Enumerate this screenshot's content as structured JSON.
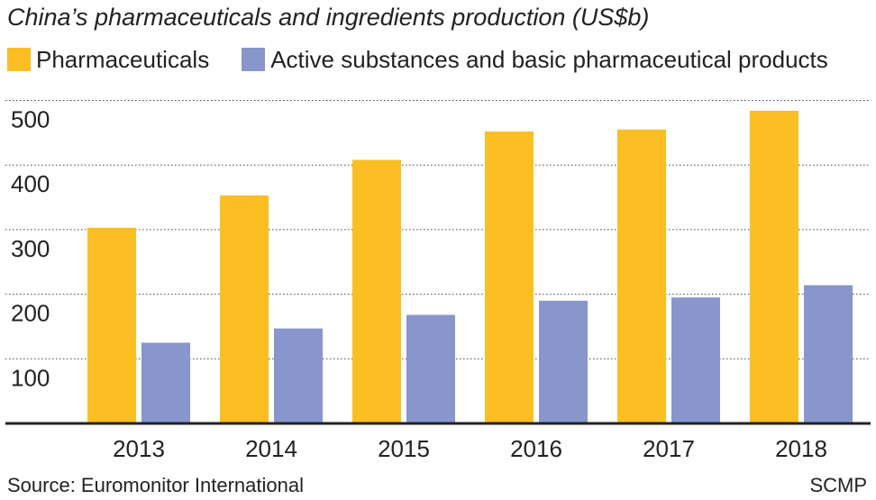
{
  "chart_data": {
    "type": "bar",
    "title": "China’s pharmaceuticals and ingredients production (US$b)",
    "categories": [
      "2013",
      "2014",
      "2015",
      "2016",
      "2017",
      "2018"
    ],
    "series": [
      {
        "name": "Pharmaceuticals",
        "color": "#fbbf24",
        "values": [
          303,
          353,
          408,
          452,
          455,
          484
        ]
      },
      {
        "name": "Active substances and basic pharmaceutical products",
        "color": "#8896cc",
        "values": [
          125,
          147,
          168,
          190,
          195,
          214
        ]
      }
    ],
    "yticks": [
      100,
      200,
      300,
      400,
      500
    ],
    "ylim": [
      0,
      530
    ],
    "grid": true,
    "xlabel": "",
    "ylabel": ""
  },
  "footer": {
    "source": "Source: Euromonitor International",
    "credit": "SCMP"
  }
}
